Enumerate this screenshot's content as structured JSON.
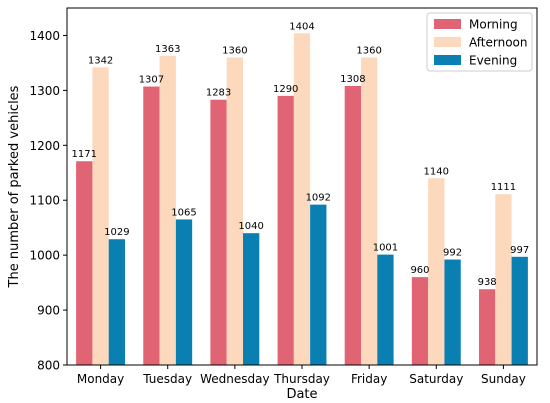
{
  "chart_data": {
    "type": "bar",
    "xlabel": "Date",
    "ylabel": "The number of parked vehicles",
    "ylim": [
      800,
      1450
    ],
    "yticks": [
      800,
      900,
      1000,
      1100,
      1200,
      1300,
      1400
    ],
    "categories": [
      "Monday",
      "Tuesday",
      "Wednesday",
      "Thursday",
      "Friday",
      "Saturday",
      "Sunday"
    ],
    "series": [
      {
        "name": "Morning",
        "color": "#e06473",
        "values": [
          1171,
          1307,
          1283,
          1290,
          1308,
          960,
          938
        ]
      },
      {
        "name": "Afternoon",
        "color": "#fcd9bd",
        "values": [
          1342,
          1363,
          1360,
          1404,
          1360,
          1140,
          1111
        ]
      },
      {
        "name": "Evening",
        "color": "#0a7fb2",
        "values": [
          1029,
          1065,
          1040,
          1092,
          1001,
          992,
          997
        ]
      }
    ],
    "legend_position": "top-right",
    "grid": false
  }
}
